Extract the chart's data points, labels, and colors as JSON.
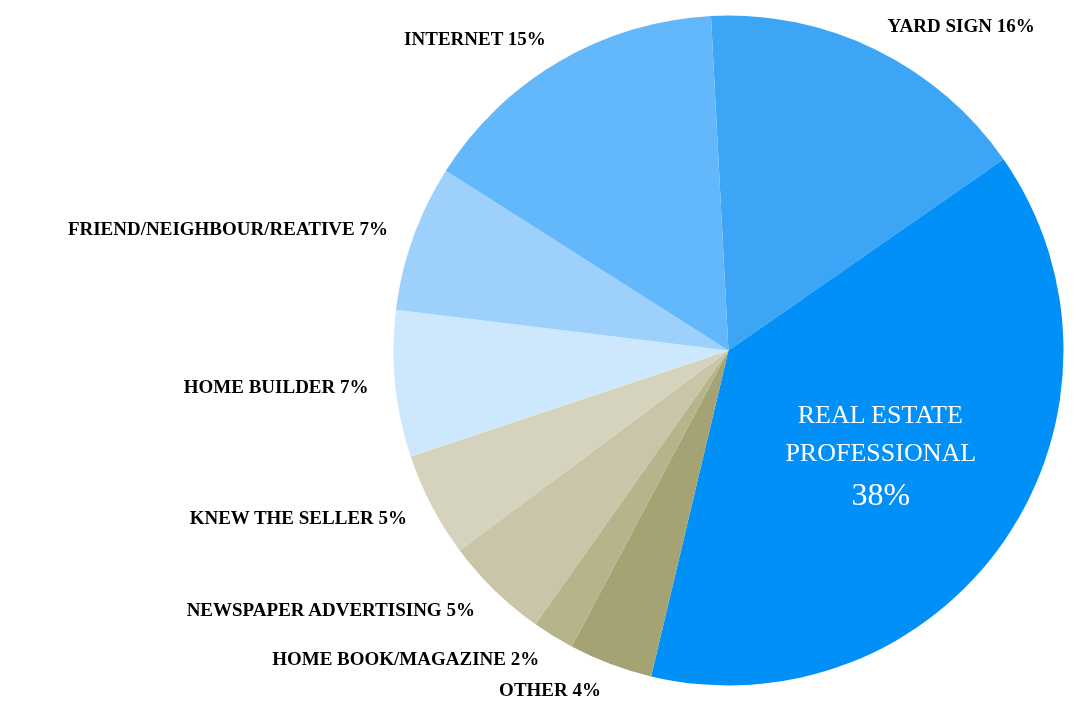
{
  "chart_data": {
    "type": "pie",
    "categories": [
      "YARD SIGN",
      "REAL ESTATE PROFESSIONAL",
      "OTHER",
      "HOME BOOK/MAGAZINE",
      "NEWSPAPER ADVERTISING",
      "KNEW THE SELLER",
      "HOME BUILDER",
      "FRIEND/NEIGHBOUR/REATIVE",
      "INTERNET"
    ],
    "values": [
      16,
      38,
      4,
      2,
      5,
      5,
      7,
      7,
      15
    ],
    "colors": [
      "#3da5f5",
      "#0090f8",
      "#a5a373",
      "#b5b48a",
      "#c8c5a8",
      "#d5d3bd",
      "#cde8fd",
      "#9dd1fc",
      "#63b8fb"
    ],
    "value_labels": [
      "16%",
      "38%",
      "4%",
      "2%",
      "5%",
      "5%",
      "7%",
      "7%",
      "15%"
    ]
  }
}
